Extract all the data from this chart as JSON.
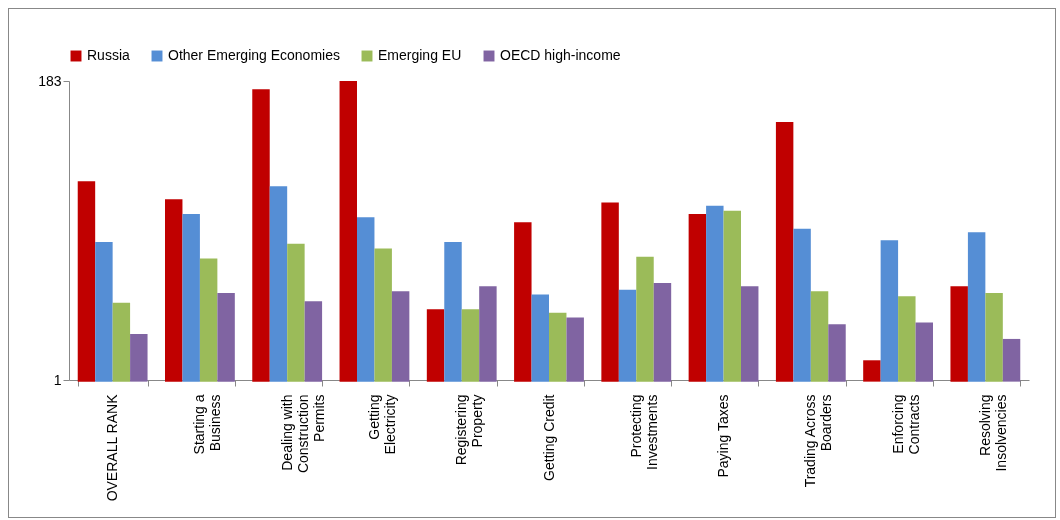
{
  "chart_data": {
    "type": "bar",
    "categories": [
      "OVERALL RANK",
      "Starting a Business",
      "Dealing with Construction Permits",
      "Getting Electricity",
      "Registering Property",
      "Getting Credit",
      "Protecting Investments",
      "Paying Taxes",
      "Trading Across Boarders",
      "Enforcing Contracts",
      "Resolving Insolvencies"
    ],
    "series": [
      {
        "name": "Russia",
        "color": "#c00000",
        "values": [
          122,
          111,
          178,
          183,
          44,
          97,
          109,
          102,
          158,
          13,
          58
        ]
      },
      {
        "name": "Other Emerging Economies",
        "color": "#558ed5",
        "values": [
          85,
          102,
          119,
          100,
          85,
          53,
          56,
          107,
          93,
          86,
          91
        ]
      },
      {
        "name": "Emerging EU",
        "color": "#9bbb59",
        "values": [
          48,
          75,
          84,
          81,
          44,
          42,
          76,
          104,
          55,
          52,
          54
        ]
      },
      {
        "name": "OECD high-income",
        "color": "#8064a2",
        "values": [
          29,
          54,
          49,
          55,
          58,
          39,
          60,
          58,
          35,
          36,
          26
        ]
      }
    ],
    "ylim": [
      1,
      183
    ],
    "yticks": [
      1,
      183
    ],
    "grid": false,
    "legend": "top"
  }
}
